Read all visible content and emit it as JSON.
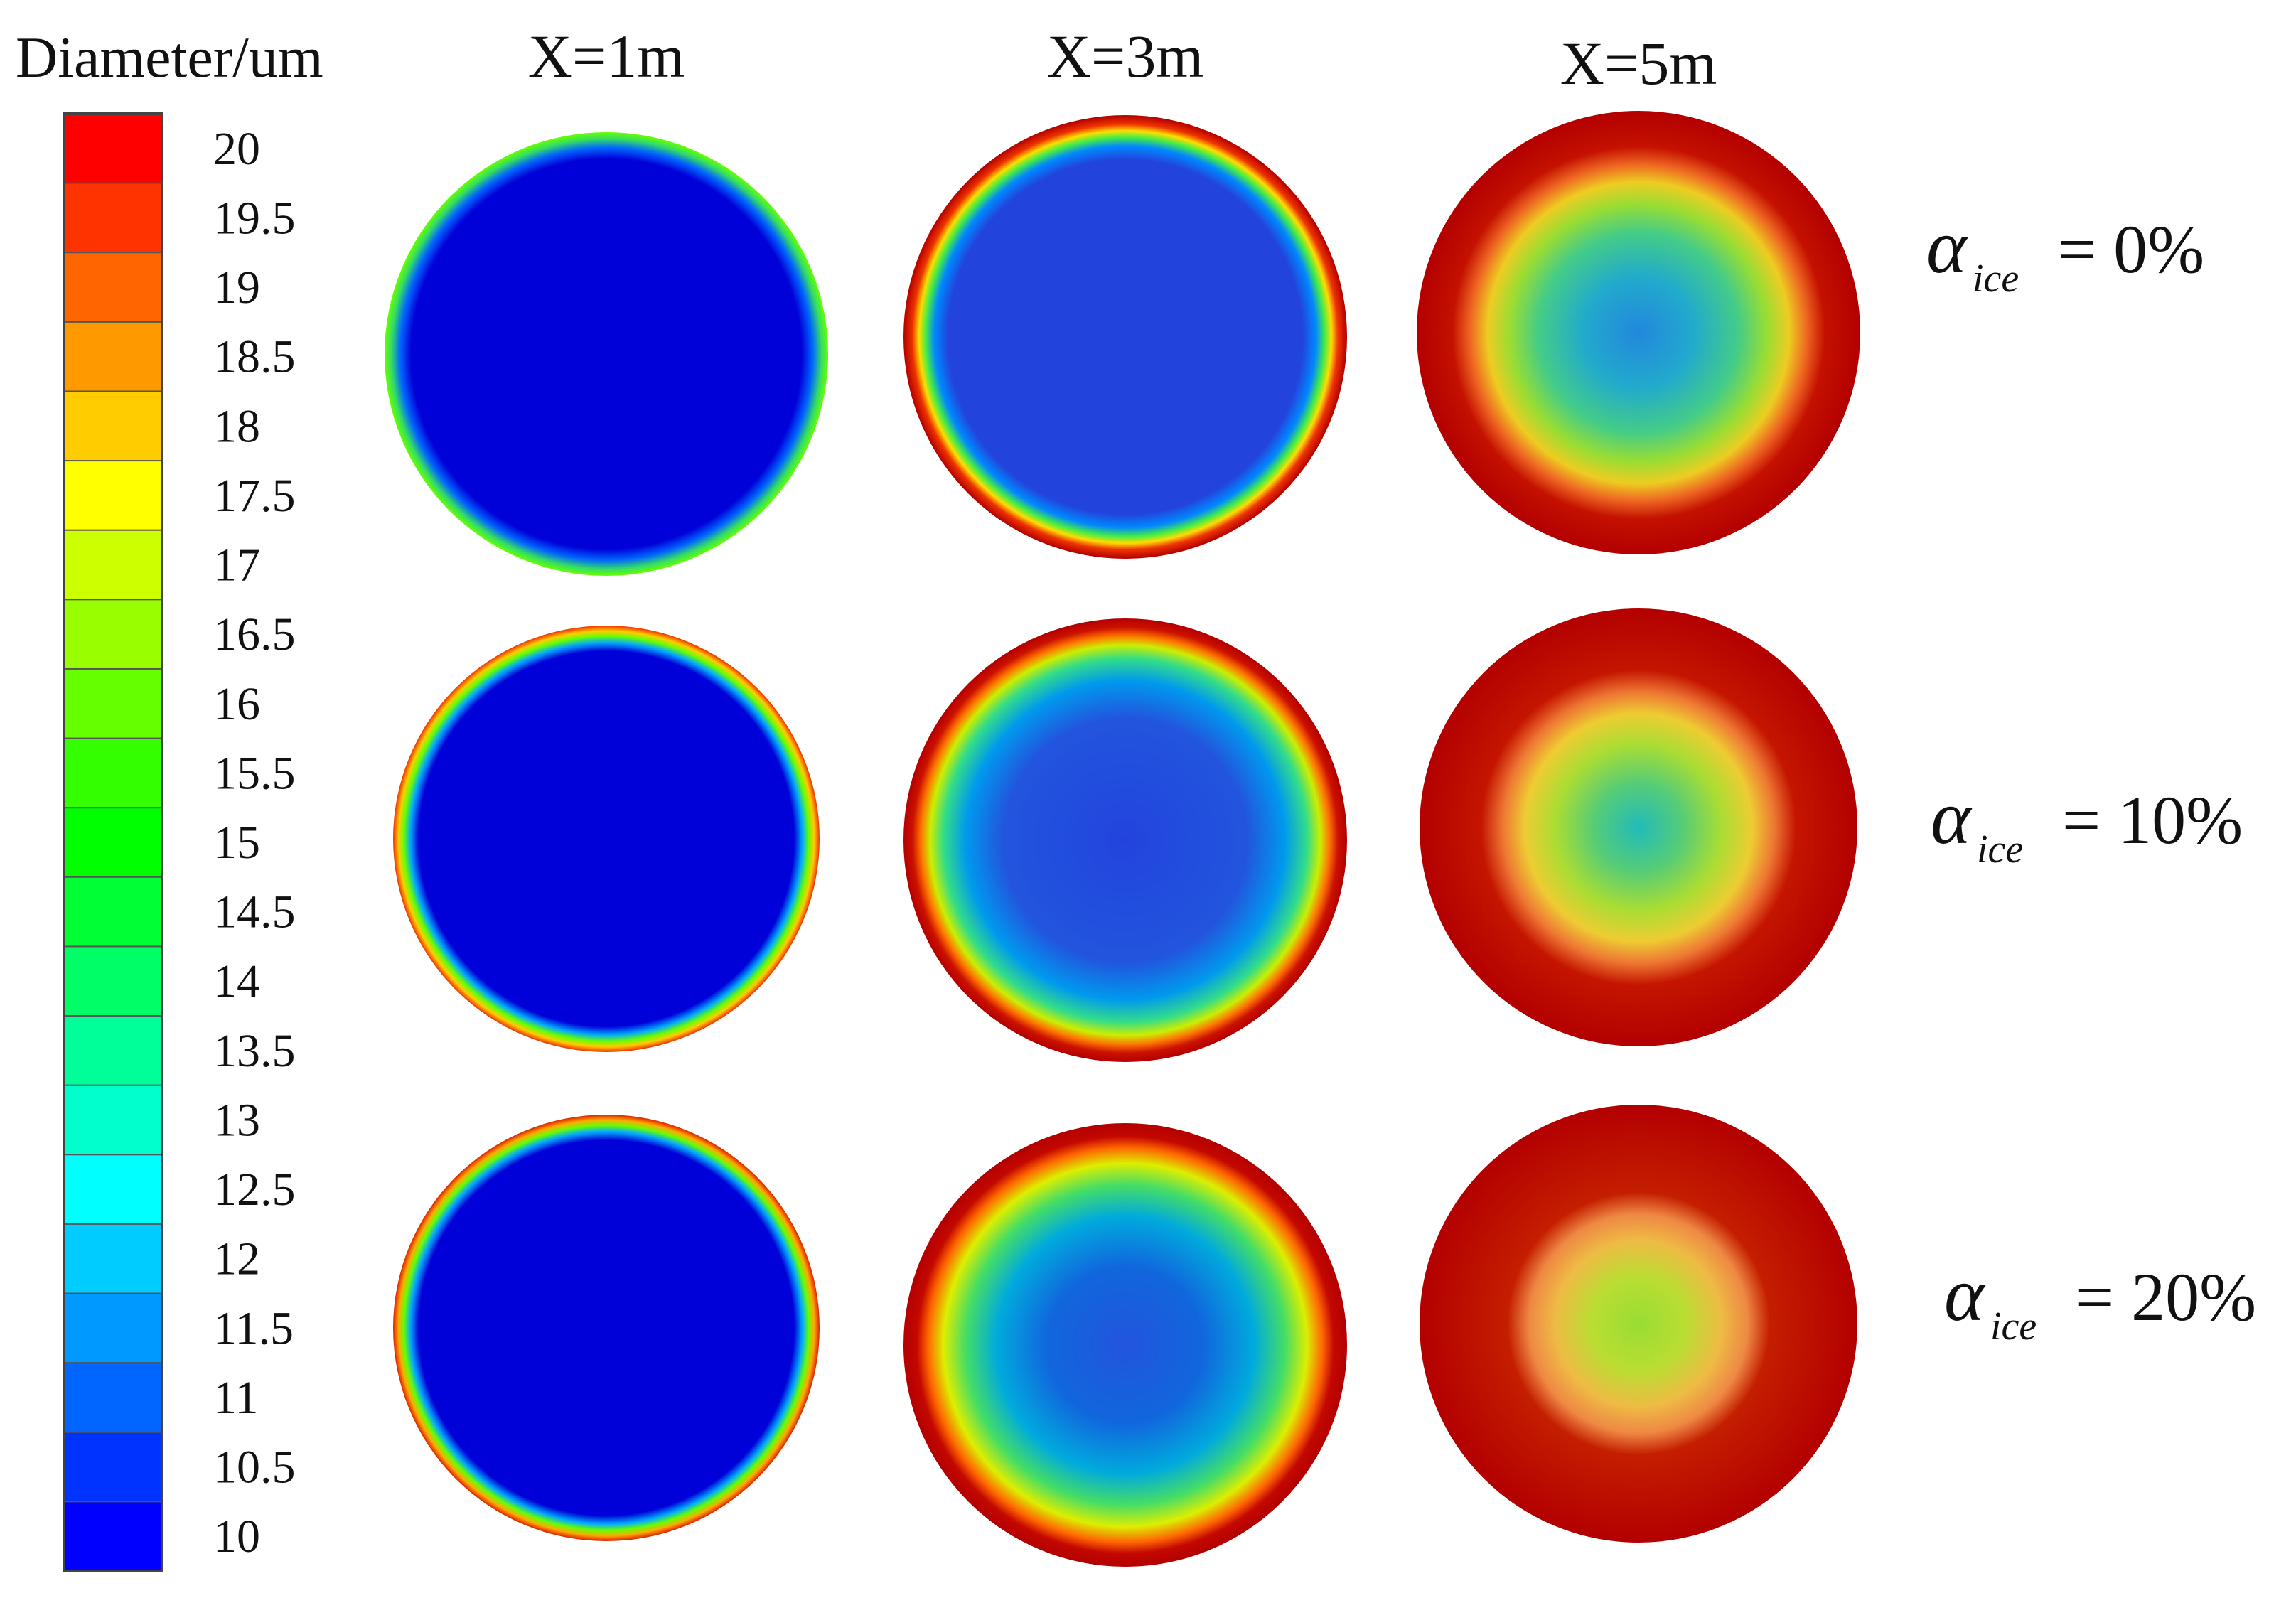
{
  "colorbar": {
    "title": "Diameter/um",
    "ticks": [
      "20",
      "19.5",
      "19",
      "18.5",
      "18",
      "17.5",
      "17",
      "16.5",
      "16",
      "15.5",
      "15",
      "14.5",
      "14",
      "13.5",
      "13",
      "12.5",
      "12",
      "11.5",
      "11",
      "10.5",
      "10"
    ],
    "band_colors": [
      "#ff0000",
      "#ff3300",
      "#ff6600",
      "#ff9900",
      "#ffcc00",
      "#ffff00",
      "#ccff00",
      "#99ff00",
      "#66ff00",
      "#33ff00",
      "#00ff00",
      "#00ff33",
      "#00ff66",
      "#00ff99",
      "#00ffcc",
      "#00ffff",
      "#00ccff",
      "#0099ff",
      "#0066ff",
      "#0033ff",
      "#0000ff"
    ]
  },
  "columns": [
    "X=1m",
    "X=3m",
    "X=5m"
  ],
  "rows": [
    {
      "symbol": "α",
      "subscript": "ice",
      "value": "= 0%"
    },
    {
      "symbol": "α",
      "subscript": "ice",
      "value": "= 10%"
    },
    {
      "symbol": "α",
      "subscript": "ice",
      "value": "= 20%"
    }
  ],
  "palette": {
    "deep_red": "#b30000",
    "core_blue": "#0000d8",
    "mid_blue": "#2244dd"
  }
}
